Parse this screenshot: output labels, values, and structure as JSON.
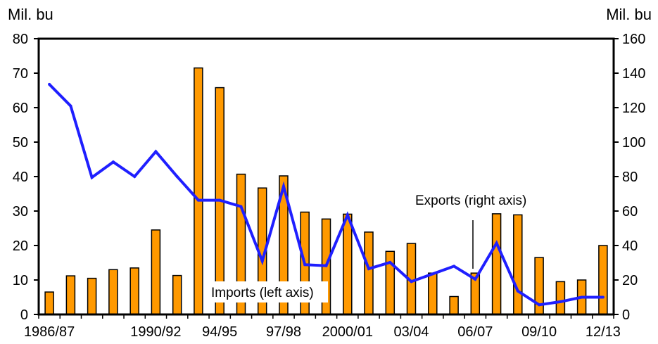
{
  "chart_data": {
    "type": "bar+line",
    "y_left_label": "Mil. bu",
    "y_right_label": "Mil. bu",
    "y_left_ticks": [
      "0",
      "10",
      "20",
      "30",
      "40",
      "50",
      "60",
      "70",
      "80"
    ],
    "y_right_ticks": [
      "0",
      "20",
      "40",
      "60",
      "80",
      "100",
      "120",
      "140",
      "160"
    ],
    "y_left_range": [
      0,
      80
    ],
    "y_right_range": [
      0,
      160
    ],
    "x_tick_labels": [
      "1986/87",
      "1990/92",
      "94/95",
      "97/98",
      "2000/01",
      "03/04",
      "06/07",
      "09/10",
      "12/13"
    ],
    "x_tick_label_index": [
      0,
      5,
      8,
      11,
      14,
      17,
      20,
      23,
      26
    ],
    "bar_series": {
      "name": "Imports (left axis)",
      "axis": "left",
      "color": "#FF9900",
      "values": [
        6.5,
        11.2,
        10.5,
        13,
        13.5,
        24.5,
        11.3,
        71.5,
        65.8,
        40.7,
        36.7,
        40.2,
        29.7,
        27.7,
        29.1,
        23.9,
        18.3,
        20.6,
        12,
        5.2,
        12,
        29.2,
        28.9,
        16.5,
        9.5,
        10,
        20
      ]
    },
    "line_series": {
      "name": "Exports (right axis)",
      "axis": "right",
      "color": "#1F1FFF",
      "values": [
        133.5,
        121,
        79.5,
        88.5,
        80,
        94.5,
        80,
        66.3,
        66.3,
        62.6,
        31,
        74.3,
        28.9,
        28.3,
        57.7,
        26.5,
        30.2,
        19.1,
        23.5,
        28,
        20.4,
        41.4,
        13.6,
        5.6,
        7.4,
        10,
        10
      ]
    },
    "annotations": [
      "Exports (right axis)",
      "Imports (left axis)"
    ],
    "grid": false
  }
}
